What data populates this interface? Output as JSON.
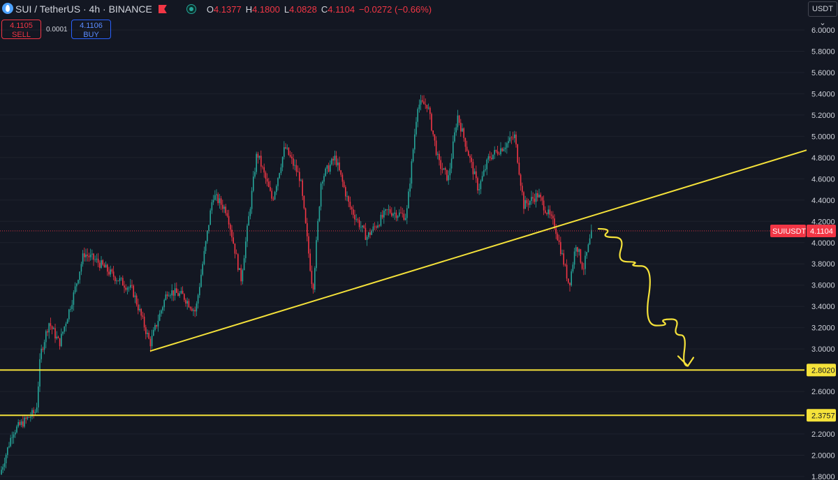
{
  "header": {
    "symbol": "SUI / TetherUS · 4h · BINANCE",
    "ohlc": [
      {
        "key": "O",
        "value": "4.1377"
      },
      {
        "key": "H",
        "value": "4.1800"
      },
      {
        "key": "L",
        "value": "4.0828"
      },
      {
        "key": "C",
        "value": "4.1104"
      },
      {
        "key": "",
        "value": "−0.0272 (−0.66%)"
      }
    ]
  },
  "trade": {
    "sell_price": "4.1105",
    "sell_label": "SELL",
    "spread": "0.0001",
    "buy_price": "4.1106",
    "buy_label": "BUY"
  },
  "currency_button": "USDT ⌄",
  "colors": {
    "background": "#131722",
    "up": "#26a69a",
    "down": "#f23645",
    "annotation": "#f5e23a",
    "axis_text": "#d1d4dc"
  },
  "chart_data": {
    "type": "candlestick",
    "ylim": [
      1.8,
      6.0
    ],
    "y_ticks": [
      "1.8000",
      "2.0000",
      "2.2000",
      "2.4000",
      "2.6000",
      "2.8000",
      "3.0000",
      "3.2000",
      "3.4000",
      "3.6000",
      "3.8000",
      "4.0000",
      "4.2000",
      "4.4000",
      "4.6000",
      "4.8000",
      "5.0000",
      "5.2000",
      "5.4000",
      "5.6000",
      "5.8000",
      "6.0000"
    ],
    "price_path": [
      [
        0,
        1.82
      ],
      [
        18,
        2.22
      ],
      [
        35,
        2.32
      ],
      [
        52,
        2.42
      ],
      [
        58,
        2.95
      ],
      [
        70,
        3.25
      ],
      [
        85,
        3.05
      ],
      [
        105,
        3.5
      ],
      [
        120,
        3.9
      ],
      [
        140,
        3.82
      ],
      [
        160,
        3.7
      ],
      [
        190,
        3.55
      ],
      [
        215,
        3.05
      ],
      [
        240,
        3.55
      ],
      [
        262,
        3.5
      ],
      [
        280,
        3.35
      ],
      [
        305,
        4.45
      ],
      [
        325,
        4.3
      ],
      [
        345,
        3.65
      ],
      [
        368,
        4.85
      ],
      [
        390,
        4.4
      ],
      [
        408,
        4.9
      ],
      [
        430,
        4.6
      ],
      [
        448,
        3.55
      ],
      [
        460,
        4.6
      ],
      [
        480,
        4.8
      ],
      [
        500,
        4.35
      ],
      [
        525,
        4.05
      ],
      [
        555,
        4.3
      ],
      [
        582,
        4.25
      ],
      [
        598,
        5.3
      ],
      [
        612,
        5.3
      ],
      [
        628,
        4.75
      ],
      [
        642,
        4.6
      ],
      [
        655,
        5.2
      ],
      [
        668,
        4.9
      ],
      [
        685,
        4.5
      ],
      [
        700,
        4.8
      ],
      [
        720,
        4.9
      ],
      [
        737,
        5.0
      ],
      [
        750,
        4.35
      ],
      [
        770,
        4.45
      ],
      [
        795,
        4.15
      ],
      [
        815,
        3.6
      ],
      [
        825,
        4.0
      ],
      [
        835,
        3.75
      ],
      [
        848,
        4.11
      ]
    ],
    "last_price": 4.1104,
    "last_price_label": "SUIUSDT",
    "last_price_text": "4.1104",
    "horizontal_levels": [
      {
        "value": 2.802,
        "label": "2.8020"
      },
      {
        "value": 2.3757,
        "label": "2.3757"
      }
    ],
    "trendline": {
      "start": [
        215,
        2.98
      ],
      "end": [
        1155,
        4.87
      ]
    },
    "forecast_arrow": [
      [
        857,
        4.13
      ],
      [
        880,
        4.05
      ],
      [
        898,
        3.82
      ],
      [
        918,
        3.78
      ],
      [
        940,
        3.22
      ],
      [
        962,
        3.28
      ],
      [
        975,
        3.13
      ],
      [
        985,
        2.84
      ]
    ]
  }
}
